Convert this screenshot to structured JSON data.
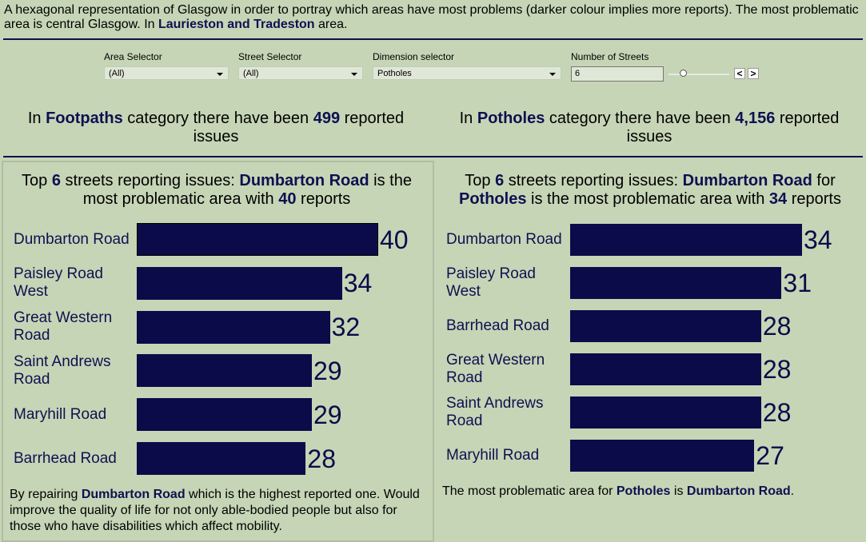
{
  "header": {
    "text_part1": "A hexagonal representation of Glasgow in order to portray which areas have most problems (darker colour implies more reports). The most problematic area is central Glasgow. In ",
    "highlight": "Laurieston and Tradeston",
    "text_part2": " area."
  },
  "controls": {
    "area": {
      "label": "Area Selector",
      "value": "(All)"
    },
    "street": {
      "label": "Street Selector",
      "value": "(All)"
    },
    "dimension": {
      "label": "Dimension selector",
      "value": "Potholes"
    },
    "num_streets": {
      "label": "Number of Streets",
      "value": "6",
      "prev": "<",
      "next": ">"
    }
  },
  "summary_left": {
    "pre": "In ",
    "category": "Footpaths",
    "mid": " category there have been ",
    "count": "499",
    "post": " reported issues"
  },
  "summary_right": {
    "pre": "In ",
    "category": "Potholes",
    "mid": " category there have been ",
    "count": "4,156",
    "post": " reported issues"
  },
  "left_panel": {
    "title_pre": "Top ",
    "n": "6",
    "title_mid": " streets reporting issues: ",
    "street": "Dumbarton Road",
    "title_mid2": " is the most problematic area with ",
    "reports": "40",
    "title_post": " reports",
    "footer_pre": "By repairing ",
    "footer_street": "Dumbarton Road",
    "footer_post": " which is the highest reported one. Would improve the quality of life for not only able-bodied people but also for those who have disabilities which affect mobility."
  },
  "right_panel": {
    "title_pre": "Top ",
    "n": "6",
    "title_mid": " streets reporting issues: ",
    "street": "Dumbarton Road",
    "title_for": " for ",
    "category": "Potholes",
    "title_mid2": " is the most problematic area with ",
    "reports": "34",
    "title_post": " reports",
    "footer_pre": "The most problematic area for ",
    "footer_category": "Potholes",
    "footer_mid": " is ",
    "footer_street": "Dumbarton Road",
    "footer_post": "."
  },
  "chart_data": [
    {
      "type": "bar",
      "orientation": "horizontal",
      "categories": [
        "Dumbarton Road",
        "Paisley Road West",
        "Great Western Road",
        "Saint Andrews Road",
        "Maryhill Road",
        "Barrhead Road"
      ],
      "values": [
        40,
        34,
        32,
        29,
        29,
        28
      ],
      "color": "#0b0b4a"
    },
    {
      "type": "bar",
      "orientation": "horizontal",
      "categories": [
        "Dumbarton Road",
        "Paisley Road West",
        "Barrhead Road",
        "Great Western Road",
        "Saint Andrews Road",
        "Maryhill Road"
      ],
      "values": [
        34,
        31,
        28,
        28,
        28,
        27
      ],
      "color": "#0b0b4a"
    }
  ]
}
